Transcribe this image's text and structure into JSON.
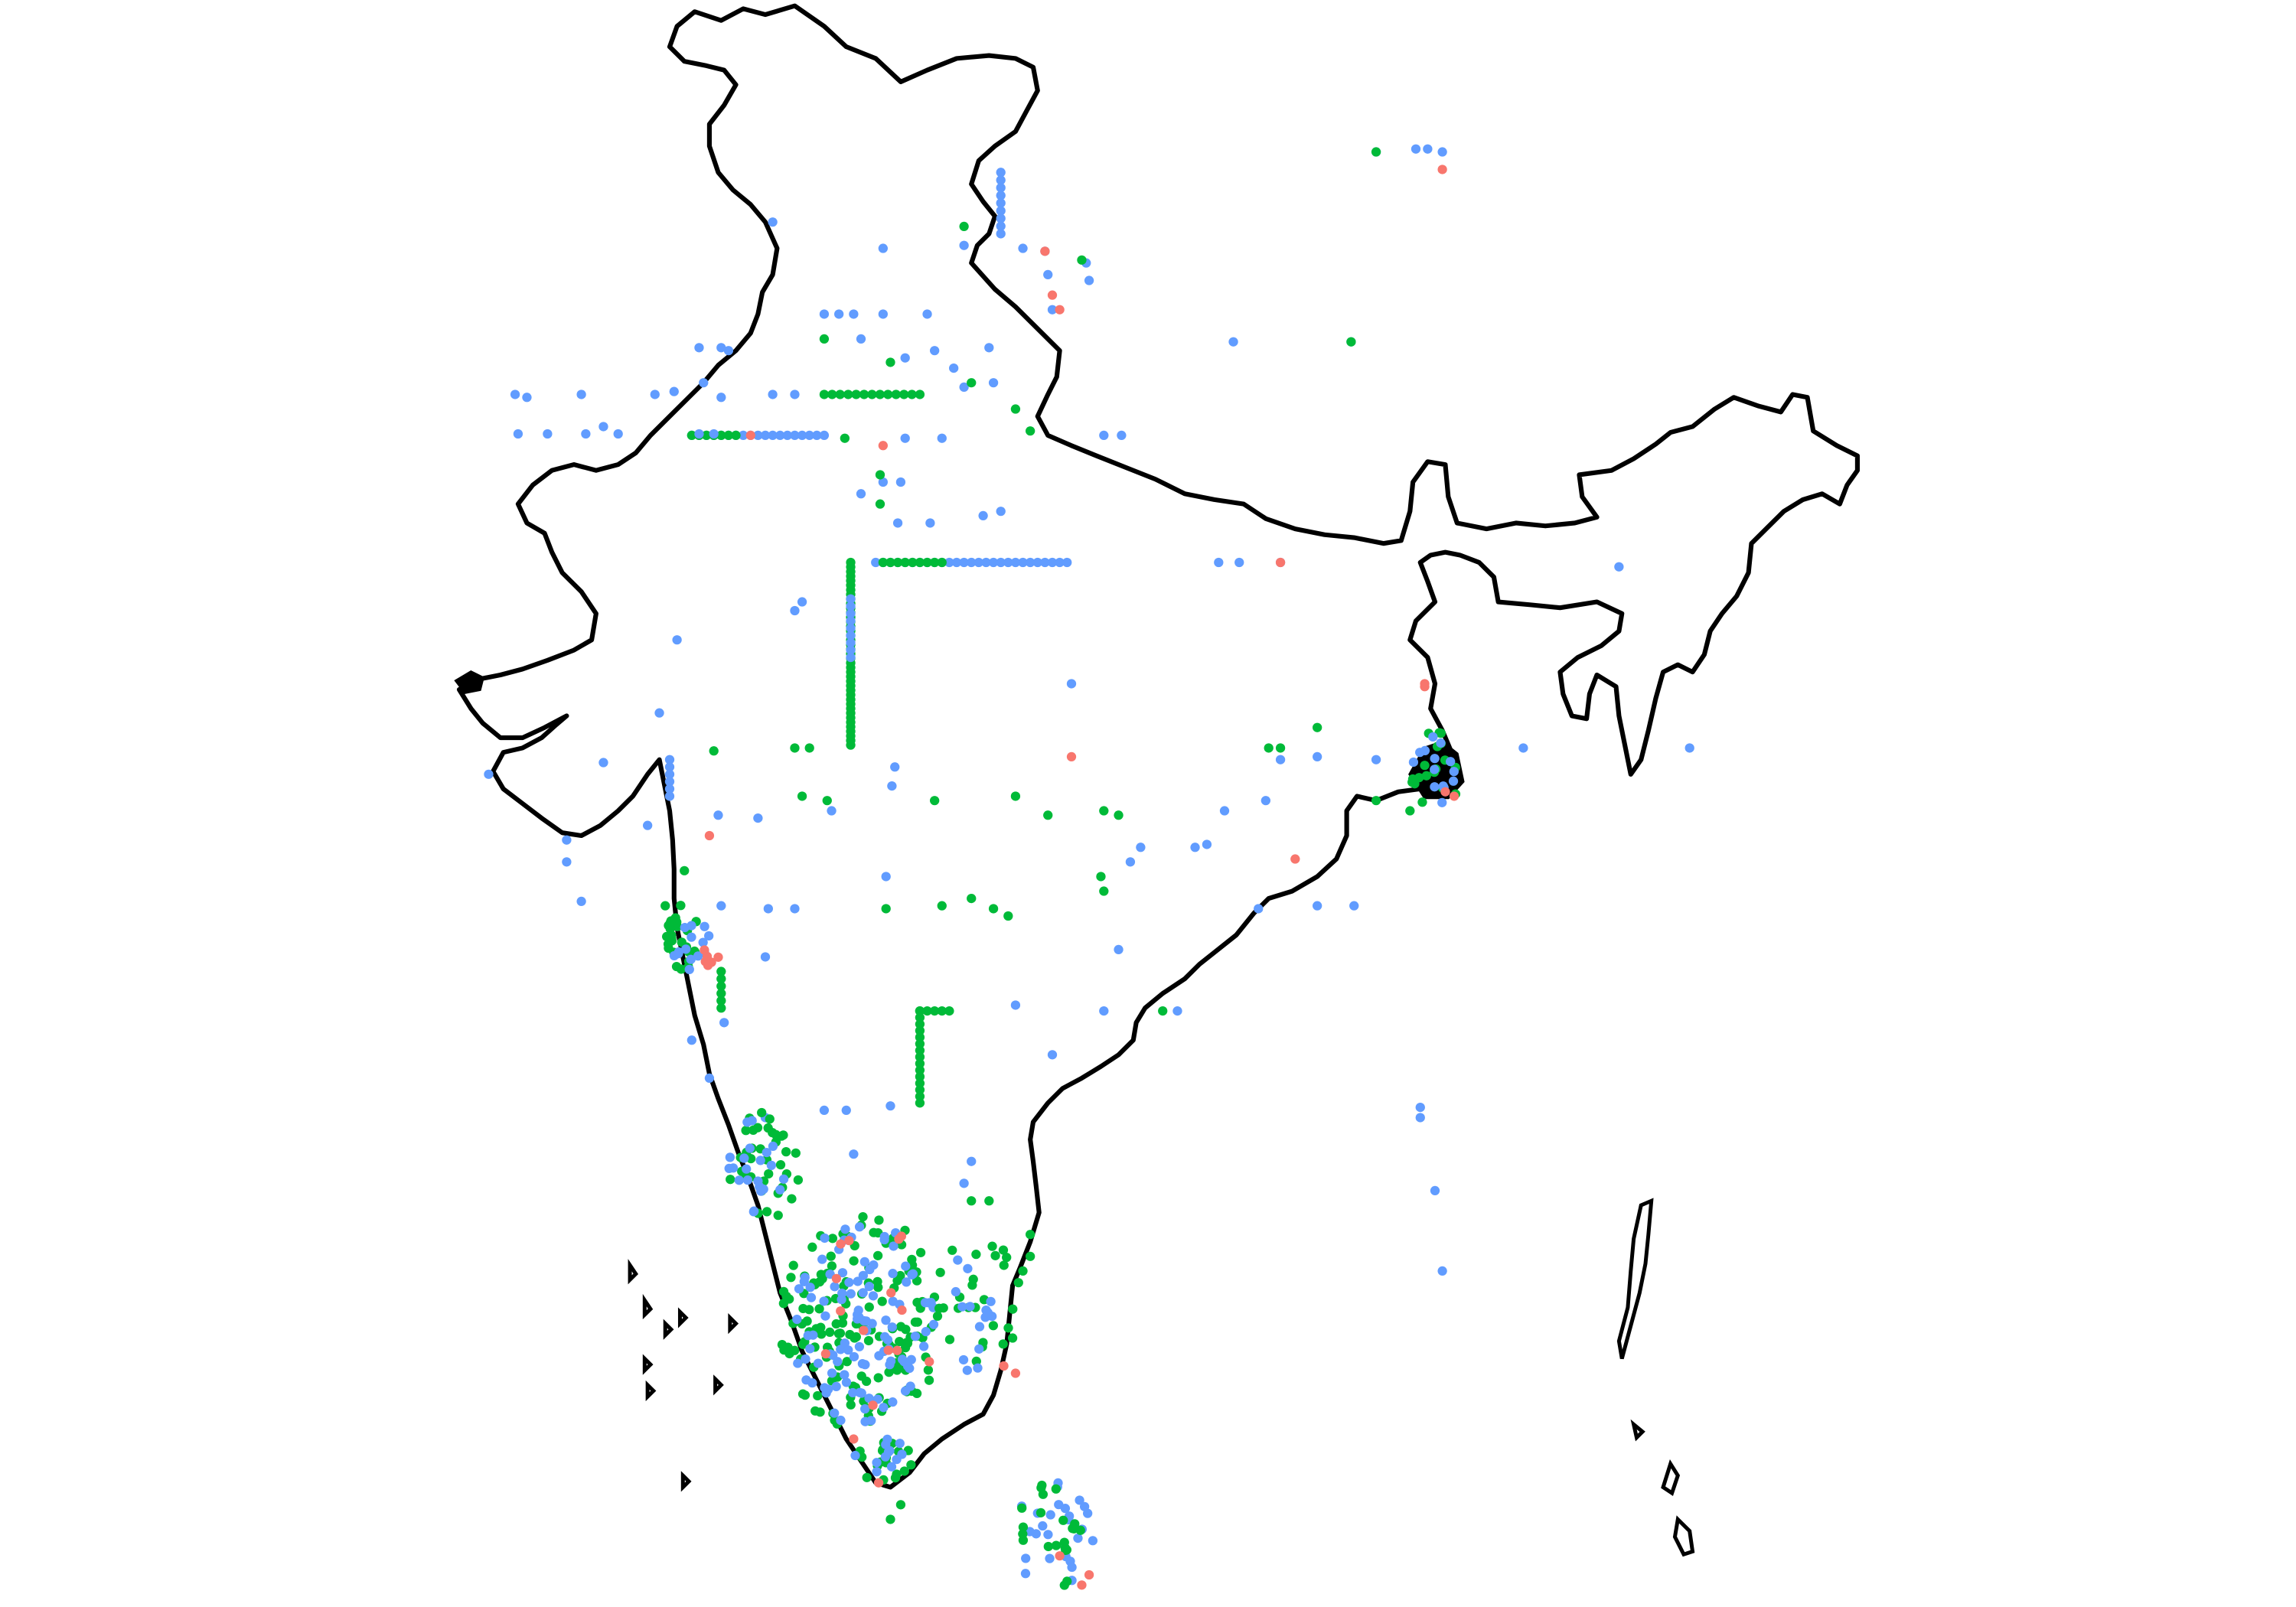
{
  "map": {
    "type": "point-map",
    "region": "India",
    "title": "",
    "legend": "none",
    "axes": "none",
    "colors": {
      "background": "#ffffff",
      "outline": "#000000",
      "red": "#F8766D",
      "green": "#00BA38",
      "blue": "#619CFF"
    },
    "point_series": [
      {
        "key": "red",
        "color": "#F8766D",
        "label": ""
      },
      {
        "key": "green",
        "color": "#00BA38",
        "label": ""
      },
      {
        "key": "blue",
        "color": "#619CFF",
        "label": ""
      }
    ]
  }
}
